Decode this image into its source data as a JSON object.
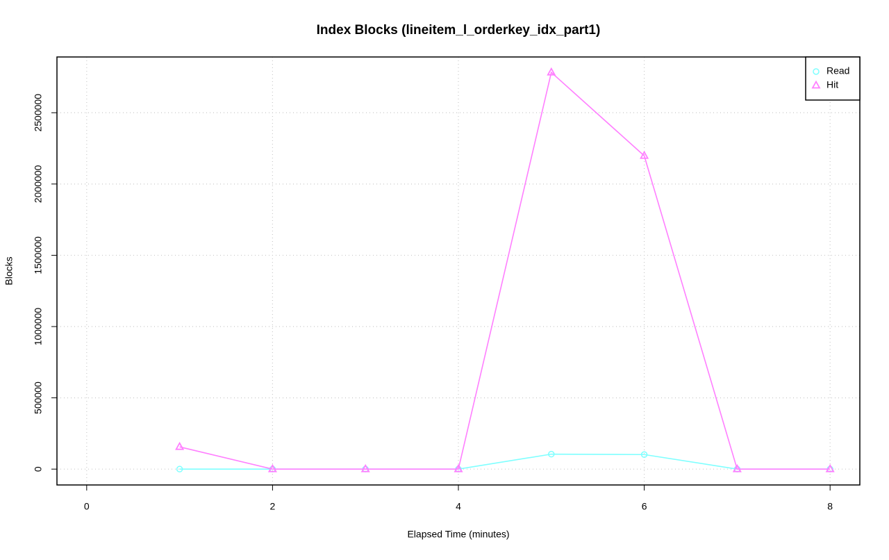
{
  "chart_data": {
    "type": "line",
    "title": "Index Blocks (lineitem_l_orderkey_idx_part1)",
    "x_label": "Elapsed Time (minutes)",
    "y_label": "Blocks",
    "x": [
      1,
      2,
      3,
      4,
      5,
      6,
      7,
      8
    ],
    "series": [
      {
        "name": "Read",
        "color": "#7fffff",
        "marker": "circle",
        "values": [
          0,
          0,
          0,
          0,
          105000,
          102000,
          0,
          0
        ]
      },
      {
        "name": "Hit",
        "color": "#ff7fff",
        "marker": "triangle",
        "values": [
          156000,
          0,
          0,
          0,
          2783000,
          2198000,
          0,
          0
        ]
      }
    ],
    "xlim": [
      -0.32,
      8.32
    ],
    "xticks": [
      0,
      2,
      4,
      6,
      8
    ],
    "ylim": [
      -111200,
      2891200
    ],
    "yticks": [
      0,
      500000,
      1000000,
      1500000,
      2000000,
      2500000
    ],
    "grid": true,
    "legend": "top-right"
  }
}
